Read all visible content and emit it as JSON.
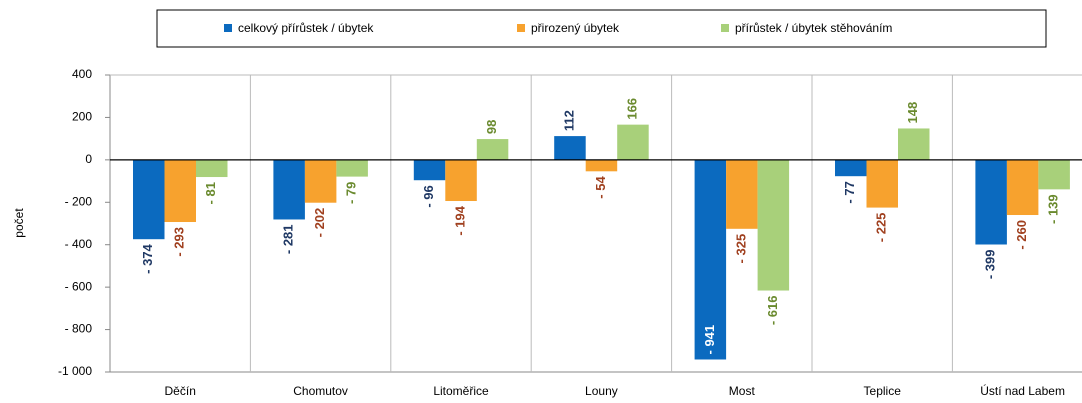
{
  "chart_data": {
    "type": "bar",
    "y_label": "počet",
    "categories": [
      "Děčín",
      "Chomutov",
      "Litoměřice",
      "Louny",
      "Most",
      "Teplice",
      "Ústí nad Labem"
    ],
    "series": [
      {
        "name": "celkový přírůstek / úbytek",
        "color": "#0b6abf",
        "values": [
          -374,
          -281,
          -96,
          112,
          -941,
          -77,
          -399
        ],
        "value_labels": [
          "- 374",
          "- 281",
          "- 96",
          "112",
          "- 941",
          "- 77",
          "- 399"
        ]
      },
      {
        "name": "přirozený úbytek",
        "color": "#f7a22e",
        "values": [
          -293,
          -202,
          -194,
          -54,
          -325,
          -225,
          -260
        ],
        "value_labels": [
          "- 293",
          "- 202",
          "- 194",
          "- 54",
          "- 325",
          "- 225",
          "- 260"
        ]
      },
      {
        "name": "přírůstek / úbytek stěhováním",
        "color": "#a8d07a",
        "values": [
          -81,
          -79,
          98,
          166,
          -616,
          148,
          -139
        ],
        "value_labels": [
          "- 81",
          "- 79",
          "98",
          "166",
          "- 616",
          "148",
          "- 139"
        ]
      }
    ],
    "ylim": [
      -1000,
      400
    ],
    "yticks": [
      {
        "value": -1000,
        "label": "-1 000"
      },
      {
        "value": -800,
        "label": "- 800"
      },
      {
        "value": -600,
        "label": "- 600"
      },
      {
        "value": -400,
        "label": "- 400"
      },
      {
        "value": -200,
        "label": "- 200"
      },
      0,
      200,
      400
    ],
    "legend": "top"
  }
}
